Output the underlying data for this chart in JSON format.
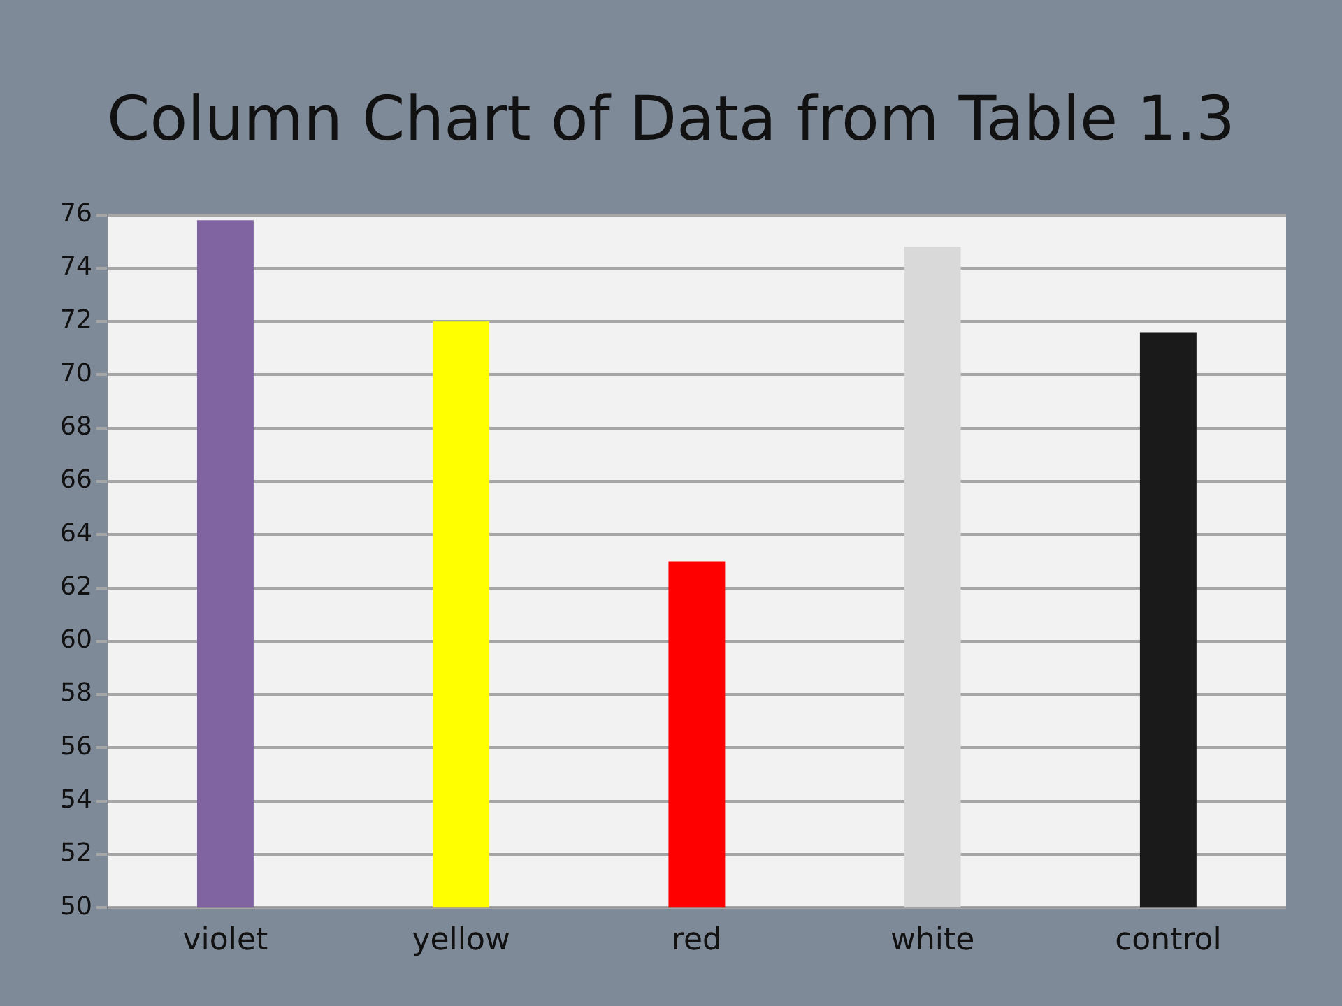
{
  "chart_data": {
    "type": "bar",
    "title": "Column Chart of Data from Table 1.3",
    "categories": [
      "violet",
      "yellow",
      "red",
      "white",
      "control"
    ],
    "values": [
      75.8,
      72,
      63,
      74.8,
      71.6
    ],
    "colors": [
      "#8064a2",
      "#ffff00",
      "#ff0000",
      "#d9d9d9",
      "#1a1a1a"
    ],
    "ylim": [
      50,
      76
    ],
    "yticks": [
      50,
      52,
      54,
      56,
      58,
      60,
      62,
      64,
      66,
      68,
      70,
      72,
      74,
      76
    ],
    "grid": "y",
    "legend": false
  }
}
